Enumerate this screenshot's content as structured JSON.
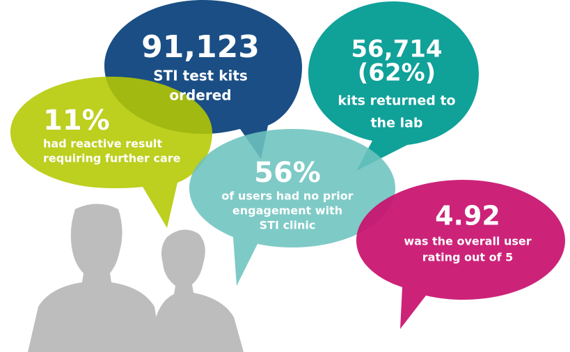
{
  "bubbles": [
    {
      "headline": [
        "91,123"
      ],
      "caption": [
        "STI test kits",
        "ordered"
      ]
    },
    {
      "headline": [
        "56,714",
        "(62%)"
      ],
      "caption": [
        "kits returned to",
        "the lab"
      ]
    },
    {
      "headline": [
        "11%"
      ],
      "caption": [
        "had reactive result",
        "requiring further care"
      ]
    },
    {
      "headline": [
        "56%"
      ],
      "caption": [
        "of users had no prior",
        "engagement with",
        "STI clinic"
      ]
    },
    {
      "headline": [
        "4.92"
      ],
      "caption": [
        "was the overall user",
        "rating out of 5"
      ]
    }
  ]
}
